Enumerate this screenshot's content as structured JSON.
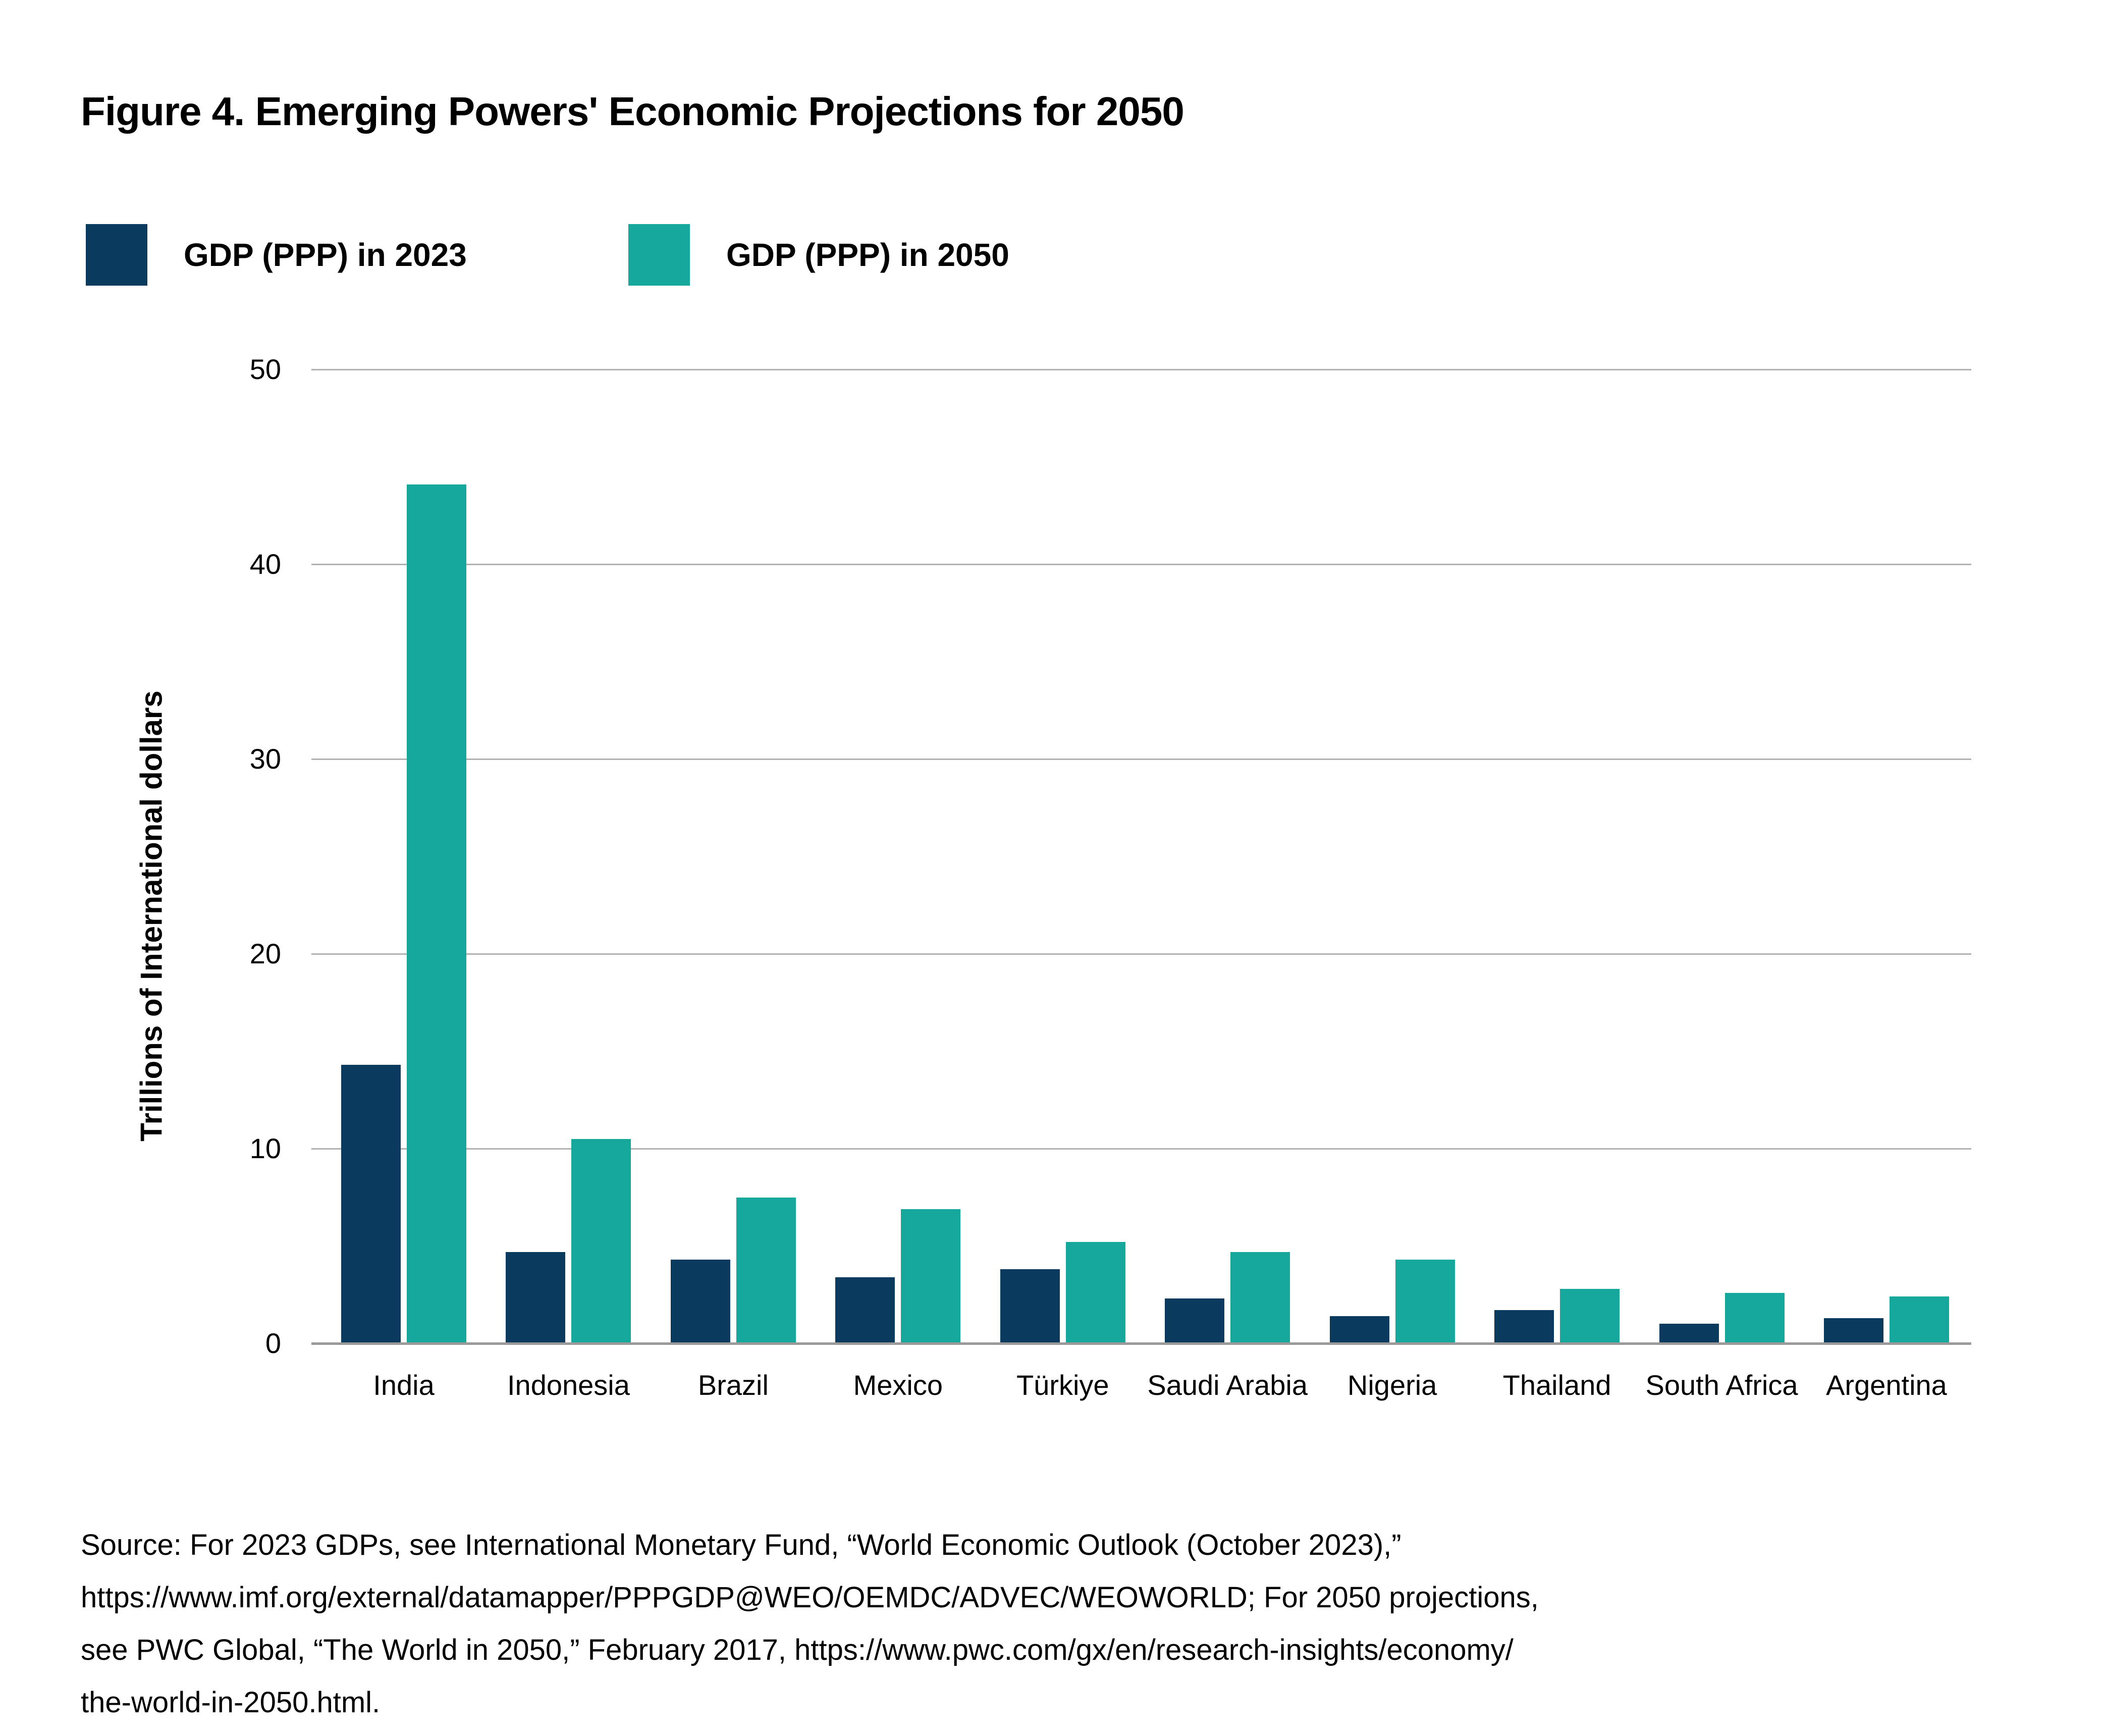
{
  "title": "Figure 4. Emerging Powers' Economic Projections for 2050",
  "colors": {
    "navy": "#0a3a5e",
    "teal": "#16a89c",
    "gridline": "#b2b2b2",
    "baseline": "#9a9a9a",
    "text": "#000000"
  },
  "legend": {
    "items": [
      {
        "label": "GDP (PPP) in 2023",
        "color": "#0a3a5e"
      },
      {
        "label": "GDP (PPP) in 2050",
        "color": "#16a89c"
      }
    ]
  },
  "chart_data": {
    "type": "bar",
    "title": "Figure 4. Emerging Powers' Economic Projections for 2050",
    "categories": [
      "India",
      "Indonesia",
      "Brazil",
      "Mexico",
      "Türkiye",
      "Saudi Arabia",
      "Nigeria",
      "Thailand",
      "South Africa",
      "Argentina"
    ],
    "series": [
      {
        "name": "GDP (PPP) in 2023",
        "color": "#0a3a5e",
        "values": [
          14.3,
          4.7,
          4.3,
          3.4,
          3.8,
          2.3,
          1.4,
          1.7,
          1.0,
          1.3
        ]
      },
      {
        "name": "GDP (PPP) in 2050",
        "color": "#16a89c",
        "values": [
          44.1,
          10.5,
          7.5,
          6.9,
          5.2,
          4.7,
          4.3,
          2.8,
          2.6,
          2.4
        ]
      }
    ],
    "xlabel": "",
    "ylabel": "Trillions of International dollars",
    "ylim": [
      0,
      50
    ],
    "yticks": [
      0,
      10,
      20,
      30,
      40,
      50
    ],
    "grid": true,
    "legend_position": "top-left"
  },
  "source": {
    "lines": [
      "Source: For 2023 GDPs, see International Monetary Fund, “World Economic Outlook (October 2023),”",
      "https://www.imf.org/external/datamapper/PPPGDP@WEO/OEMDC/ADVEC/WEOWORLD; For 2050 projections,",
      "see PWC Global, “The World in 2050,” February 2017, https://www.pwc.com/gx/en/research-insights/economy/",
      "the-world-in-2050.html."
    ]
  }
}
